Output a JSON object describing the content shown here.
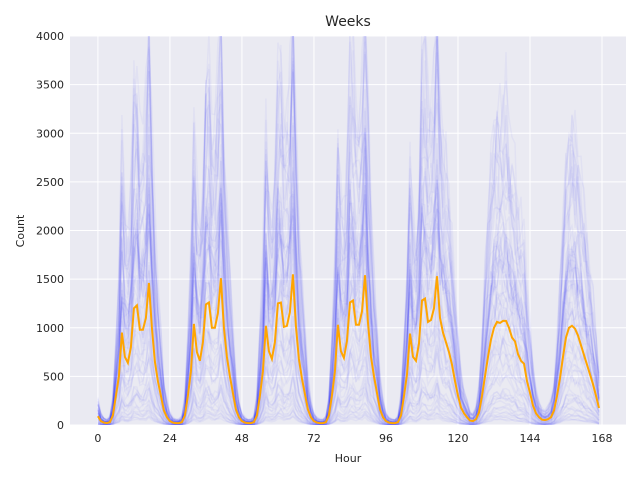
{
  "chart_data": {
    "type": "line",
    "title": "Weeks",
    "xlabel": "Hour",
    "ylabel": "Count",
    "xlim": [
      -9.3,
      176
    ],
    "ylim": [
      0,
      4000
    ],
    "xticks": [
      0,
      24,
      48,
      72,
      96,
      120,
      144,
      168
    ],
    "yticks": [
      0,
      500,
      1000,
      1500,
      2000,
      2500,
      3000,
      3500,
      4000
    ],
    "grid": true,
    "background_color": "#eaeaf2",
    "individual_weeks_color": "#0000ff",
    "mean_color": "#ffa500",
    "mean_series": {
      "x_start": 0,
      "values": [
        90,
        40,
        25,
        20,
        30,
        100,
        300,
        500,
        950,
        700,
        640,
        800,
        1200,
        1230,
        980,
        980,
        1100,
        1460,
        1000,
        650,
        450,
        300,
        150,
        80,
        40,
        25,
        20,
        20,
        30,
        100,
        300,
        550,
        1040,
        750,
        660,
        850,
        1240,
        1260,
        1000,
        1000,
        1150,
        1510,
        1000,
        700,
        500,
        330,
        160,
        80,
        40,
        25,
        20,
        20,
        30,
        100,
        300,
        550,
        1020,
        760,
        680,
        850,
        1250,
        1260,
        1010,
        1020,
        1160,
        1550,
        1020,
        680,
        480,
        320,
        160,
        80,
        40,
        25,
        20,
        20,
        30,
        100,
        300,
        550,
        1030,
        760,
        690,
        860,
        1260,
        1280,
        1030,
        1030,
        1170,
        1540,
        1050,
        700,
        500,
        330,
        160,
        80,
        40,
        25,
        20,
        20,
        30,
        100,
        300,
        520,
        940,
        700,
        660,
        840,
        1280,
        1300,
        1060,
        1080,
        1200,
        1530,
        1100,
        950,
        850,
        750,
        620,
        450,
        300,
        180,
        120,
        80,
        45,
        40,
        60,
        130,
        300,
        500,
        700,
        880,
        1000,
        1060,
        1050,
        1070,
        1070,
        1000,
        900,
        860,
        730,
        660,
        630,
        450,
        330,
        200,
        120,
        80,
        55,
        50,
        60,
        80,
        150,
        300,
        480,
        700,
        900,
        1000,
        1020,
        990,
        920,
        820,
        720,
        620,
        520,
        420,
        300,
        175
      ]
    }
  }
}
